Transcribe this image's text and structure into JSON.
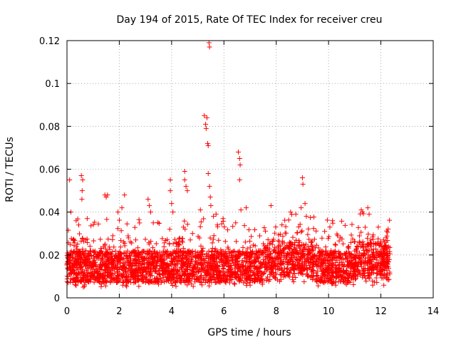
{
  "chart_data": {
    "type": "scatter",
    "title": "Day 194 of 2015, Rate Of TEC Index for receiver creu",
    "xlabel": "GPS time / hours",
    "ylabel": "ROTI / TECUs",
    "xlim": [
      0,
      14
    ],
    "ylim": [
      0,
      0.12
    ],
    "xticks": [
      0,
      2,
      4,
      6,
      8,
      10,
      12,
      14
    ],
    "xtick_labels": [
      "0",
      "2",
      "4",
      "6",
      "8",
      "10",
      "12",
      "14"
    ],
    "yticks": [
      0,
      0.02,
      0.04,
      0.06,
      0.08,
      0.1,
      0.12
    ],
    "ytick_labels": [
      "0",
      "0.02",
      "0.04",
      "0.06",
      "0.08",
      "0.1",
      "0.12"
    ],
    "grid": true,
    "marker": "+",
    "color": "#ff0000",
    "series": [
      {
        "name": "ROTI",
        "x_range": [
          0,
          12.35
        ],
        "typical_band": [
          0.005,
          0.025
        ],
        "outliers": [
          {
            "x": 0.1,
            "y": 0.055
          },
          {
            "x": 0.15,
            "y": 0.04
          },
          {
            "x": 0.55,
            "y": 0.057
          },
          {
            "x": 0.6,
            "y": 0.055
          },
          {
            "x": 0.58,
            "y": 0.05
          },
          {
            "x": 0.57,
            "y": 0.046
          },
          {
            "x": 0.35,
            "y": 0.036
          },
          {
            "x": 0.45,
            "y": 0.034
          },
          {
            "x": 1.45,
            "y": 0.048
          },
          {
            "x": 1.5,
            "y": 0.047
          },
          {
            "x": 1.55,
            "y": 0.048
          },
          {
            "x": 2.2,
            "y": 0.048
          },
          {
            "x": 2.1,
            "y": 0.042
          },
          {
            "x": 1.95,
            "y": 0.04
          },
          {
            "x": 3.1,
            "y": 0.046
          },
          {
            "x": 3.2,
            "y": 0.04
          },
          {
            "x": 3.3,
            "y": 0.035
          },
          {
            "x": 3.15,
            "y": 0.043
          },
          {
            "x": 3.95,
            "y": 0.055
          },
          {
            "x": 3.95,
            "y": 0.05
          },
          {
            "x": 4.0,
            "y": 0.044
          },
          {
            "x": 4.05,
            "y": 0.04
          },
          {
            "x": 4.5,
            "y": 0.059
          },
          {
            "x": 4.5,
            "y": 0.055
          },
          {
            "x": 4.55,
            "y": 0.052
          },
          {
            "x": 4.6,
            "y": 0.05
          },
          {
            "x": 4.45,
            "y": 0.033
          },
          {
            "x": 4.8,
            "y": 0.03
          },
          {
            "x": 5.25,
            "y": 0.085
          },
          {
            "x": 5.3,
            "y": 0.081
          },
          {
            "x": 5.35,
            "y": 0.084
          },
          {
            "x": 5.32,
            "y": 0.079
          },
          {
            "x": 5.38,
            "y": 0.072
          },
          {
            "x": 5.4,
            "y": 0.071
          },
          {
            "x": 5.43,
            "y": 0.119
          },
          {
            "x": 5.45,
            "y": 0.117
          },
          {
            "x": 5.4,
            "y": 0.058
          },
          {
            "x": 5.45,
            "y": 0.052
          },
          {
            "x": 5.48,
            "y": 0.047
          },
          {
            "x": 5.5,
            "y": 0.043
          },
          {
            "x": 5.6,
            "y": 0.038
          },
          {
            "x": 5.7,
            "y": 0.039
          },
          {
            "x": 5.1,
            "y": 0.041
          },
          {
            "x": 6.55,
            "y": 0.068
          },
          {
            "x": 6.6,
            "y": 0.065
          },
          {
            "x": 6.62,
            "y": 0.062
          },
          {
            "x": 6.6,
            "y": 0.055
          },
          {
            "x": 6.65,
            "y": 0.041
          },
          {
            "x": 6.85,
            "y": 0.042
          },
          {
            "x": 6.45,
            "y": 0.035
          },
          {
            "x": 7.8,
            "y": 0.043
          },
          {
            "x": 8.55,
            "y": 0.04
          },
          {
            "x": 8.75,
            "y": 0.039
          },
          {
            "x": 9.0,
            "y": 0.056
          },
          {
            "x": 9.02,
            "y": 0.053
          },
          {
            "x": 9.1,
            "y": 0.044
          },
          {
            "x": 8.95,
            "y": 0.042
          },
          {
            "x": 9.15,
            "y": 0.038
          },
          {
            "x": 10.15,
            "y": 0.036
          },
          {
            "x": 9.85,
            "y": 0.031
          },
          {
            "x": 10.05,
            "y": 0.033
          },
          {
            "x": 11.25,
            "y": 0.041
          },
          {
            "x": 11.3,
            "y": 0.04
          },
          {
            "x": 11.5,
            "y": 0.042
          },
          {
            "x": 11.55,
            "y": 0.039
          },
          {
            "x": 11.9,
            "y": 0.033
          },
          {
            "x": 12.1,
            "y": 0.027
          },
          {
            "x": 12.2,
            "y": 0.028
          }
        ]
      }
    ]
  }
}
